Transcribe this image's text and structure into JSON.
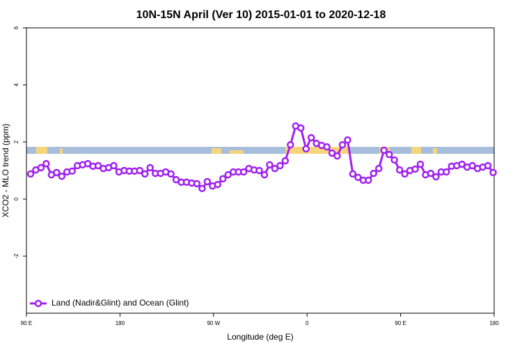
{
  "chart_data": {
    "type": "line",
    "title": "10N-15N April (Ver 10)   2015-01-01 to 2020-12-18",
    "xlabel": "Longitude (deg E)",
    "ylabel": "XCO2 - MLO trend (ppm)",
    "xlim": [
      90,
      540
    ],
    "ylim": [
      -4,
      6
    ],
    "xticks": [
      {
        "value": 90,
        "label": "90 E"
      },
      180,
      {
        "value": 270,
        "label": "90 W"
      },
      {
        "value": 360,
        "label": "0"
      },
      {
        "value": 450,
        "label": "90 E"
      },
      {
        "value": 540,
        "label": "180"
      }
    ],
    "yticks": [
      -2,
      0,
      2,
      4,
      6
    ],
    "legend": "bottom-left",
    "x": [
      94,
      99,
      104,
      109,
      114,
      119,
      124,
      129,
      134,
      139,
      144,
      149,
      154,
      159,
      164,
      169,
      174,
      179,
      184,
      189,
      194,
      199,
      204,
      209,
      214,
      219,
      224,
      229,
      234,
      239,
      244,
      249,
      254,
      259,
      264,
      269,
      274,
      279,
      284,
      289,
      294,
      299,
      304,
      309,
      314,
      319,
      324,
      329,
      334,
      339,
      344,
      349,
      354,
      359,
      364,
      369,
      374,
      379,
      384,
      389,
      394,
      399,
      404,
      409,
      414,
      419,
      424,
      429,
      434,
      439,
      444,
      449,
      454,
      459,
      464,
      469,
      474,
      479,
      484,
      489,
      494,
      499,
      504,
      509,
      514,
      519,
      524,
      529,
      534,
      539
    ],
    "series": [
      {
        "name": "Land (Nadir&Glint) and Ocean (Glint)",
        "color": "#a020f0",
        "values": [
          0.88,
          1.02,
          1.1,
          1.24,
          0.85,
          0.93,
          0.8,
          0.95,
          0.98,
          1.17,
          1.2,
          1.24,
          1.15,
          1.17,
          1.07,
          1.1,
          1.17,
          0.95,
          1.0,
          0.98,
          0.98,
          1.0,
          0.88,
          1.1,
          0.9,
          0.9,
          0.95,
          0.88,
          0.68,
          0.59,
          0.59,
          0.56,
          0.54,
          0.37,
          0.61,
          0.46,
          0.51,
          0.71,
          0.85,
          0.95,
          0.95,
          0.95,
          1.07,
          1.02,
          1.0,
          0.85,
          1.2,
          1.07,
          1.17,
          1.34,
          1.9,
          2.56,
          2.49,
          1.76,
          2.15,
          1.95,
          1.88,
          1.83,
          1.61,
          1.51,
          1.9,
          2.07,
          0.88,
          0.76,
          0.66,
          0.66,
          0.9,
          1.07,
          1.71,
          1.56,
          1.37,
          1.02,
          0.88,
          1.0,
          1.05,
          1.22,
          0.85,
          0.9,
          0.78,
          0.95,
          0.95,
          1.15,
          1.17,
          1.22,
          1.12,
          1.17,
          1.07,
          1.12,
          1.17,
          0.93
        ]
      }
    ]
  }
}
